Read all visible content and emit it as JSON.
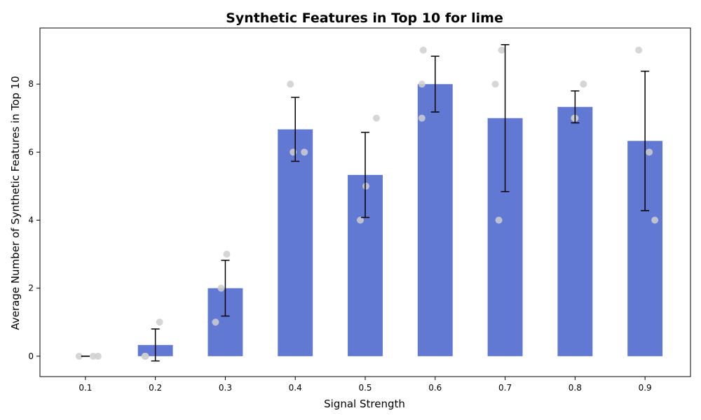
{
  "chart_data": {
    "type": "bar",
    "title": "Synthetic Features in Top 10 for lime",
    "xlabel": "Signal Strength",
    "ylabel": "Average Number of Synthetic Features in Top 10",
    "categories": [
      "0.1",
      "0.2",
      "0.3",
      "0.4",
      "0.5",
      "0.6",
      "0.7",
      "0.8",
      "0.9"
    ],
    "values": [
      0,
      0.33,
      2.0,
      6.67,
      5.33,
      8.0,
      7.0,
      7.33,
      6.33
    ],
    "error": [
      0,
      0.47,
      0.82,
      0.94,
      1.25,
      0.82,
      2.16,
      0.47,
      2.05
    ],
    "points": [
      [
        0,
        0,
        0
      ],
      [
        0,
        0,
        1
      ],
      [
        1,
        2,
        3
      ],
      [
        8,
        6,
        6
      ],
      [
        4,
        5,
        7
      ],
      [
        8,
        7,
        9
      ],
      [
        8,
        4,
        9
      ],
      [
        7,
        7,
        8
      ],
      [
        9,
        6,
        4
      ]
    ],
    "yticks": [
      0,
      2,
      4,
      6,
      8
    ],
    "ylim": [
      -0.6,
      9.65
    ],
    "grid": false,
    "legend": "none",
    "colors": {
      "bar": "#6279d3",
      "point": "#cfcfcf",
      "errorbar": "#000000"
    }
  }
}
